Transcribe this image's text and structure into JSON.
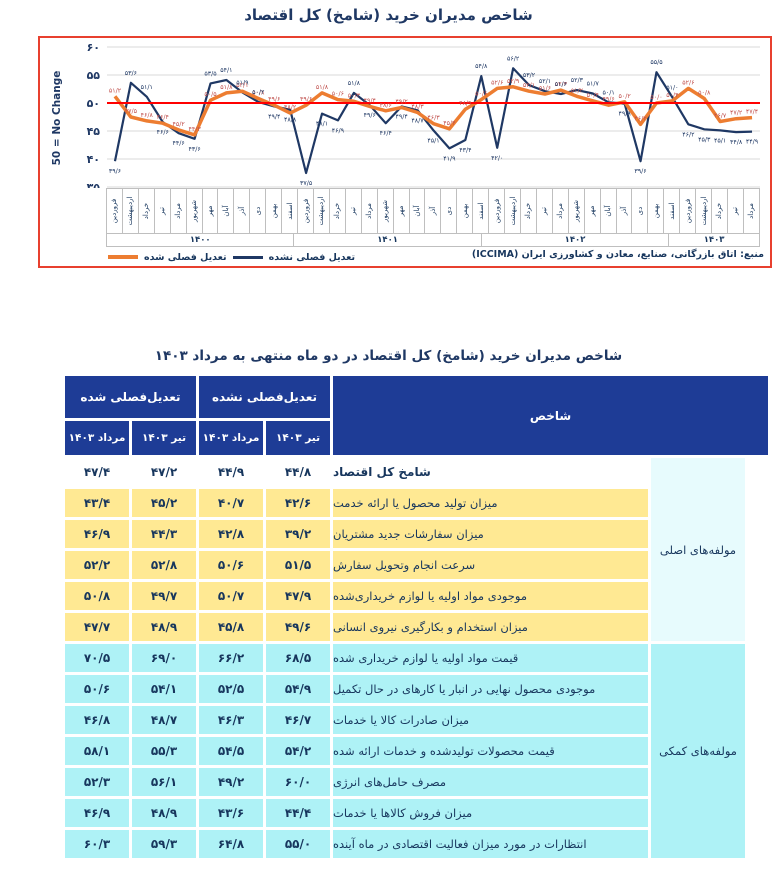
{
  "chart": {
    "title": "شاخص مدیران خرید (شامخ) کل اقتصاد",
    "source_note": "منبع: اتاق بازرگانی، صنایع، معادن و کشاورزی ایران (ICCIMA)",
    "colors": {
      "adjusted_line": "#ED7D31",
      "unadjusted_line": "#1F3864",
      "reference_line": "#FF0000",
      "adjusted_label": "#C0504D",
      "unadjusted_label": "#1F3864",
      "frame_border": "#E8402F",
      "gridline": "#D9D9D9"
    }
  },
  "chart_data": [
    {
      "type": "line",
      "title": "شاخص مدیران خرید (شامخ) کل اقتصاد",
      "ylabel": "50 = No Change",
      "ylim": [
        35,
        60
      ],
      "yticks": [
        60,
        55,
        50,
        45,
        40,
        35
      ],
      "grid": true,
      "legend_position": "bottom-left",
      "reference_line": {
        "value": 50,
        "label": "50 = No Change"
      },
      "months_of_year": [
        "فروردین",
        "اردیبهشت",
        "خرداد",
        "تیر",
        "مرداد",
        "شهریور",
        "مهر",
        "آبان",
        "آذر",
        "دی",
        "بهمن",
        "اسفند"
      ],
      "years": [
        {
          "label": "۱۴۰۰",
          "count": 12
        },
        {
          "label": "۱۴۰۱",
          "count": 12
        },
        {
          "label": "۱۴۰۲",
          "count": 12
        },
        {
          "label": "۱۴۰۳",
          "count": 5
        }
      ],
      "series": [
        {
          "name": "تعدیل فصلی شده",
          "values": [
            51.2,
            47.5,
            46.8,
            46.4,
            45.2,
            44.3,
            50.5,
            51.8,
            52.1,
            50.8,
            49.6,
            48.2,
            49.6,
            51.8,
            50.6,
            50.3,
            49.4,
            48.6,
            49.2,
            48.3,
            46.3,
            45.4,
            48.9,
            50.6,
            52.6,
            52.9,
            52.1,
            51.6,
            52.3,
            51.2,
            50.4,
            49.6,
            50.2,
            46.2,
            50.0,
            50.4,
            52.6,
            50.8,
            46.7,
            47.2,
            47.4
          ]
        },
        {
          "name": "تعدیل فصلی نشده",
          "values": [
            39.6,
            53.6,
            51.1,
            46.6,
            44.6,
            43.6,
            53.5,
            54.1,
            51.9,
            50.2,
            49.4,
            48.8,
            37.5,
            48.1,
            46.9,
            51.8,
            49.6,
            46.4,
            49.4,
            48.7,
            45.1,
            41.9,
            43.4,
            54.8,
            42.0,
            56.2,
            53.2,
            52.1,
            51.6,
            52.3,
            51.7,
            50.1,
            49.9,
            39.6,
            55.5,
            51.0,
            46.2,
            45.3,
            45.1,
            44.8,
            44.9
          ]
        }
      ]
    },
    {
      "type": "table",
      "title": "شاخص مدیران خرید (شامخ) کل اقتصاد در دو ماه منتهی به مرداد ۱۴۰۳",
      "column_groups": [
        {
          "label": "تعدیل‌فصلی شده"
        },
        {
          "label": "تعدیل‌فصلی نشده"
        }
      ],
      "sub_headers": [
        "مرداد ۱۴۰۳",
        "تیر ۱۴۰۳",
        "مرداد ۱۴۰۳",
        "تیر ۱۴۰۳"
      ],
      "index_header": "شاخص",
      "row_groups": [
        {
          "label": "مولفه‌های اصلی",
          "first_row": 0,
          "row_count": 6
        },
        {
          "label": "مولفه‌های کمکی",
          "first_row": 6,
          "row_count": 7
        }
      ],
      "rows": [
        {
          "label": "شامخ کل اقتصاد",
          "style": "total",
          "values": [
            "۴۷/۴",
            "۴۷/۲",
            "۴۴/۹",
            "۴۴/۸"
          ]
        },
        {
          "label": "میزان تولید محصول یا ارائه خدمت",
          "style": "main",
          "values": [
            "۴۳/۴",
            "۴۵/۲",
            "۴۰/۷",
            "۴۲/۶"
          ]
        },
        {
          "label": "میزان سفارشات جدید مشتریان",
          "style": "main",
          "values": [
            "۴۶/۹",
            "۴۴/۳",
            "۴۲/۸",
            "۳۹/۲"
          ]
        },
        {
          "label": "سرعت انجام وتحویل سفارش",
          "style": "main",
          "values": [
            "۵۲/۲",
            "۵۲/۸",
            "۵۰/۶",
            "۵۱/۵"
          ]
        },
        {
          "label": "موجودی مواد اولیه یا لوازم خریداری‌شده",
          "style": "main",
          "values": [
            "۵۰/۸",
            "۴۹/۷",
            "۵۰/۷",
            "۴۷/۹"
          ]
        },
        {
          "label": "میزان استخدام و بکارگیری نیروی انسانی",
          "style": "main",
          "values": [
            "۴۷/۷",
            "۴۸/۹",
            "۴۵/۸",
            "۴۹/۶"
          ]
        },
        {
          "label": "قیمت مواد اولیه یا لوازم خریداری شده",
          "style": "aux",
          "values": [
            "۷۰/۵",
            "۶۹/۰",
            "۶۶/۲",
            "۶۸/۵"
          ]
        },
        {
          "label": "موجودی محصول نهایی در انبار یا کارهای در حال تکمیل",
          "style": "aux",
          "values": [
            "۵۰/۶",
            "۵۴/۱",
            "۵۲/۵",
            "۵۴/۹"
          ]
        },
        {
          "label": "میزان صادرات کالا یا خدمات",
          "style": "aux",
          "values": [
            "۴۶/۸",
            "۴۸/۷",
            "۴۶/۳",
            "۴۶/۷"
          ]
        },
        {
          "label": "قیمت محصولات تولیدشده و خدمات ارائه شده",
          "style": "aux",
          "values": [
            "۵۸/۱",
            "۵۵/۳",
            "۵۴/۵",
            "۵۴/۲"
          ]
        },
        {
          "label": "مصرف حامل‌های انرژی",
          "style": "aux",
          "values": [
            "۵۲/۳",
            "۵۶/۱",
            "۴۹/۲",
            "۶۰/۰"
          ]
        },
        {
          "label": "میزان فروش کالاها یا خدمات",
          "style": "aux",
          "values": [
            "۴۶/۹",
            "۴۸/۹",
            "۴۳/۶",
            "۴۴/۴"
          ]
        },
        {
          "label": "انتظارات در مورد میزان فعالیت اقتصادی در ماه آینده",
          "style": "aux",
          "values": [
            "۶۰/۳",
            "۵۹/۳",
            "۶۴/۸",
            "۵۵/۰"
          ]
        }
      ],
      "style_colors": {
        "total": "#FFFFFF",
        "main": "#FFE993",
        "aux": "#AEF2F6",
        "group_main": "#E7FBFD",
        "group_aux": "#AEF2F6",
        "header": "#1E3C96"
      }
    }
  ],
  "table_title": "شاخص مدیران خرید (شامخ) کل اقتصاد در دو ماه منتهی به مرداد ۱۴۰۳"
}
